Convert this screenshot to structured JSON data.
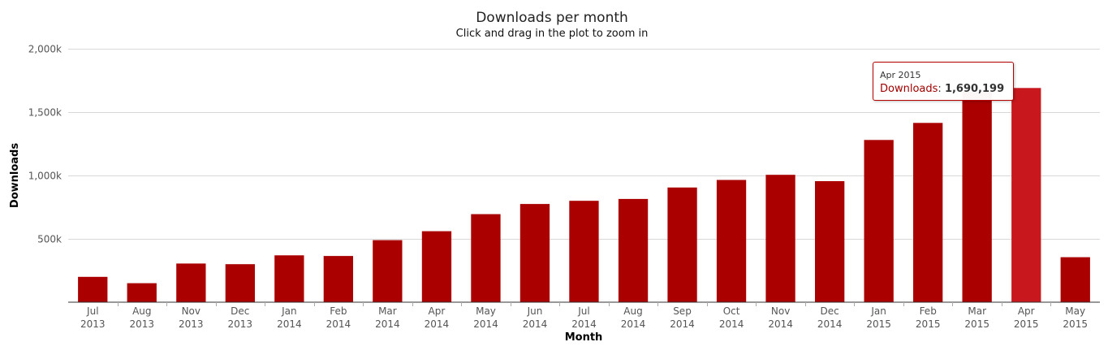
{
  "chart_data": {
    "type": "bar",
    "title": "Downloads per month",
    "subtitle": "Click and drag in the plot to zoom in",
    "xlabel": "Month",
    "ylabel": "Downloads",
    "categories": [
      [
        "Jul",
        "2013"
      ],
      [
        "Aug",
        "2013"
      ],
      [
        "Nov",
        "2013"
      ],
      [
        "Dec",
        "2013"
      ],
      [
        "Jan",
        "2014"
      ],
      [
        "Feb",
        "2014"
      ],
      [
        "Mar",
        "2014"
      ],
      [
        "Apr",
        "2014"
      ],
      [
        "May",
        "2014"
      ],
      [
        "Jun",
        "2014"
      ],
      [
        "Jul",
        "2014"
      ],
      [
        "Aug",
        "2014"
      ],
      [
        "Sep",
        "2014"
      ],
      [
        "Oct",
        "2014"
      ],
      [
        "Nov",
        "2014"
      ],
      [
        "Dec",
        "2014"
      ],
      [
        "Jan",
        "2015"
      ],
      [
        "Feb",
        "2015"
      ],
      [
        "Mar",
        "2015"
      ],
      [
        "Apr",
        "2015"
      ],
      [
        "May",
        "2015"
      ]
    ],
    "series": [
      {
        "name": "Downloads",
        "color": "#aa0000",
        "values": [
          200000,
          150000,
          305000,
          300000,
          370000,
          365000,
          490000,
          560000,
          695000,
          775000,
          800000,
          815000,
          905000,
          965000,
          1005000,
          955000,
          1280000,
          1415000,
          1660000,
          1690199,
          355000
        ]
      }
    ],
    "ylim": [
      0,
      2000000
    ],
    "yticks": [
      {
        "value": 500000,
        "label": "500k"
      },
      {
        "value": 1000000,
        "label": "1,000k"
      },
      {
        "value": 1500000,
        "label": "1,500k"
      },
      {
        "value": 2000000,
        "label": "2,000k"
      }
    ],
    "grid": true,
    "legend": "none",
    "highlight_color": "#c8181e",
    "tooltip": {
      "category_index": 19,
      "date": "Apr 2015",
      "series_name": "Downloads",
      "separator": ":",
      "value": "1,690,199"
    }
  }
}
